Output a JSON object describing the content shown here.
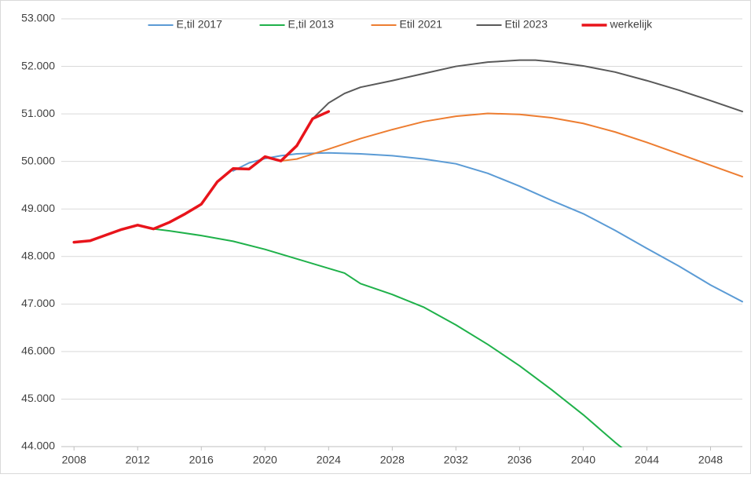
{
  "chart_data": {
    "type": "line",
    "xlim": [
      2007.2,
      2050
    ],
    "xticks": [
      2008,
      2012,
      2016,
      2020,
      2024,
      2028,
      2032,
      2036,
      2040,
      2044,
      2048
    ],
    "ylim": [
      44000,
      53000
    ],
    "yticks": [
      {
        "value": 44000,
        "label": "44.000"
      },
      {
        "value": 45000,
        "label": "45.000"
      },
      {
        "value": 46000,
        "label": "46.000"
      },
      {
        "value": 47000,
        "label": "47.000"
      },
      {
        "value": 48000,
        "label": "48.000"
      },
      {
        "value": 49000,
        "label": "49.000"
      },
      {
        "value": 50000,
        "label": "50.000"
      },
      {
        "value": 51000,
        "label": "51.000"
      },
      {
        "value": 52000,
        "label": "52.000"
      },
      {
        "value": 53000,
        "label": "53.000"
      }
    ],
    "grid": true,
    "legend": "top",
    "series": [
      {
        "name": "E,til 2017",
        "color": "#5b9bd5",
        "width": 2,
        "x": [
          2018,
          2019,
          2020,
          2021,
          2022,
          2024,
          2026,
          2028,
          2030,
          2032,
          2034,
          2036,
          2038,
          2040,
          2042,
          2044,
          2046,
          2048,
          2050
        ],
        "values": [
          49800,
          49970,
          50060,
          50120,
          50160,
          50180,
          50160,
          50120,
          50050,
          49950,
          49750,
          49480,
          49180,
          48900,
          48550,
          48170,
          47800,
          47400,
          47050
        ]
      },
      {
        "name": "E,til 2013",
        "color": "#1fb14a",
        "width": 2,
        "x": [
          2013,
          2014,
          2016,
          2018,
          2020,
          2022,
          2024,
          2025,
          2026,
          2028,
          2030,
          2032,
          2034,
          2036,
          2038,
          2040,
          2041,
          2042,
          2043
        ],
        "values": [
          48580,
          48540,
          48440,
          48320,
          48150,
          47950,
          47750,
          47650,
          47430,
          47200,
          46930,
          46560,
          46150,
          45700,
          45200,
          44670,
          44380,
          44090,
          43820
        ]
      },
      {
        "name": "Etil 2021",
        "color": "#ed7d31",
        "width": 2,
        "x": [
          2021,
          2022,
          2024,
          2026,
          2028,
          2030,
          2032,
          2034,
          2036,
          2038,
          2040,
          2042,
          2044,
          2046,
          2048,
          2050
        ],
        "values": [
          50010,
          50050,
          50260,
          50480,
          50670,
          50840,
          50950,
          51010,
          50990,
          50920,
          50800,
          50620,
          50400,
          50160,
          49920,
          49680
        ]
      },
      {
        "name": "Etil 2023",
        "color": "#595959",
        "width": 2,
        "x": [
          2023,
          2024,
          2025,
          2026,
          2028,
          2030,
          2032,
          2034,
          2036,
          2037,
          2038,
          2040,
          2042,
          2044,
          2046,
          2048,
          2050
        ],
        "values": [
          50900,
          51230,
          51430,
          51560,
          51700,
          51850,
          52000,
          52090,
          52130,
          52130,
          52100,
          52010,
          51880,
          51700,
          51500,
          51280,
          51050
        ]
      },
      {
        "name": "werkelijk",
        "color": "#e8141b",
        "width": 3.5,
        "x": [
          2008,
          2009,
          2010,
          2011,
          2012,
          2013,
          2014,
          2015,
          2016,
          2017,
          2018,
          2019,
          2020,
          2021,
          2022,
          2023,
          2024
        ],
        "values": [
          48300,
          48330,
          48450,
          48570,
          48660,
          48580,
          48720,
          48900,
          49100,
          49570,
          49850,
          49840,
          50100,
          50010,
          50330,
          50900,
          51050
        ]
      }
    ]
  }
}
